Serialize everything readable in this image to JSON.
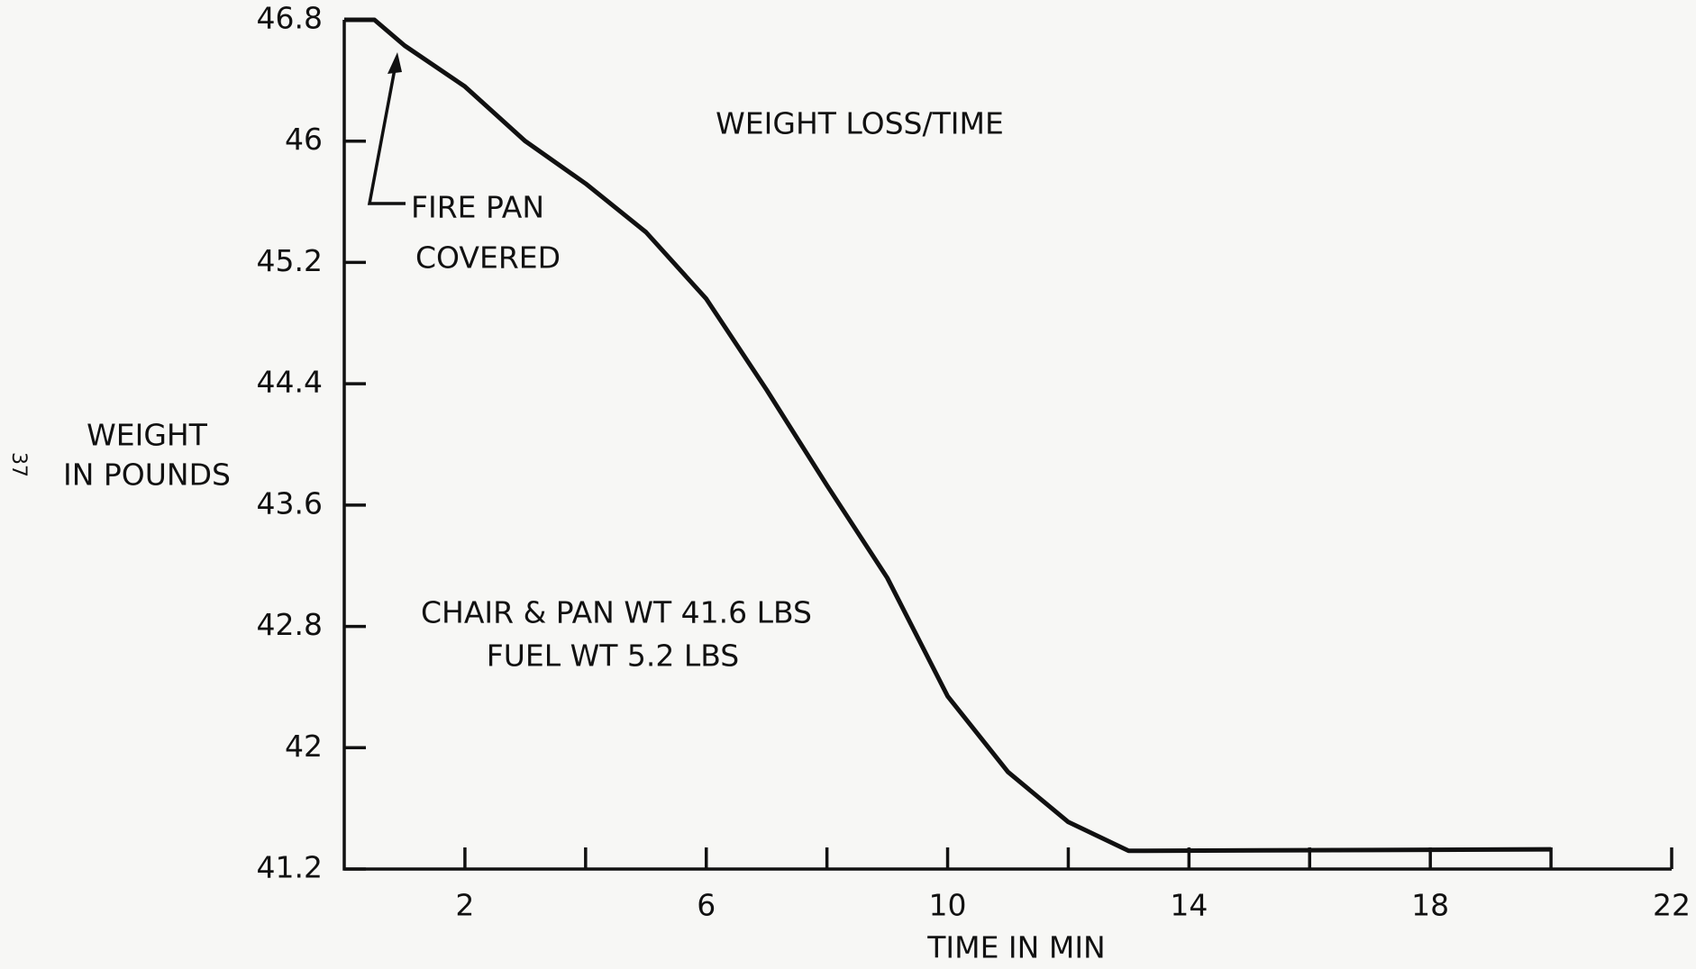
{
  "chart_data": {
    "type": "line",
    "title": "WEIGHT LOSS/TIME",
    "xlabel": "TIME IN MIN",
    "ylabel": [
      "WEIGHT",
      "IN POUNDS"
    ],
    "annotations": {
      "arrow_note": [
        "FIRE PAN",
        "COVERED"
      ],
      "note": [
        "CHAIR & PAN WT 41.6 LBS",
        "FUEL WT 5.2 LBS"
      ]
    },
    "page_number": "37",
    "x": [
      0,
      0.5,
      1,
      2,
      3,
      4,
      5,
      6,
      7,
      8,
      9,
      10,
      11,
      12,
      13,
      20
    ],
    "series": [
      {
        "color": "#111111",
        "values": [
          46.8,
          46.8,
          46.63,
          46.36,
          46.0,
          45.72,
          45.4,
          44.96,
          44.36,
          43.73,
          43.12,
          42.34,
          41.84,
          41.51,
          41.32,
          41.33
        ]
      }
    ],
    "xlim": [
      0,
      22
    ],
    "xticks": [
      2,
      6,
      10,
      14,
      18,
      22
    ],
    "xminor_ticks": [
      4,
      8,
      12,
      16,
      20
    ],
    "ylim": [
      41.2,
      46.8
    ],
    "yticks": [
      41.2,
      42,
      42.8,
      43.6,
      44.4,
      45.2,
      46,
      46.8
    ]
  }
}
